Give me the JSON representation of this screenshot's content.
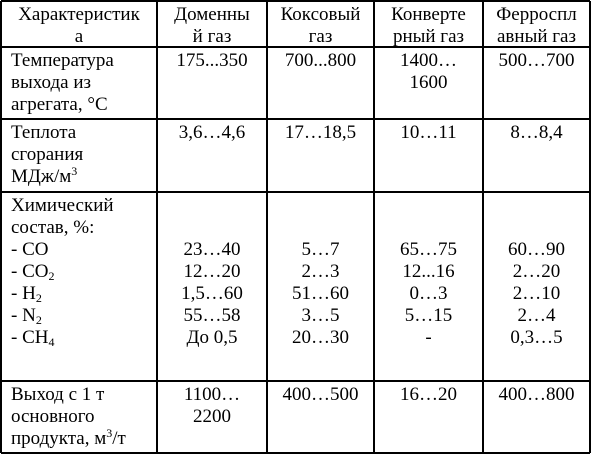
{
  "table": {
    "headers": [
      "Характеристика",
      "Доменный газ",
      "Коксовый газ",
      "Конвертерный газ",
      "Ферросплавный газ"
    ],
    "header_lines": [
      [
        "Характеристик",
        "а"
      ],
      [
        "Доменны",
        "й газ"
      ],
      [
        "Коксовый",
        "газ"
      ],
      [
        "Конверте",
        "рный газ"
      ],
      [
        "Ферроспл",
        "авный газ"
      ]
    ],
    "rows": [
      {
        "label_lines": [
          "Температура",
          "выхода из",
          "агрегата,  °С"
        ],
        "values": [
          [
            "175...350"
          ],
          [
            "700...800"
          ],
          [
            "1400…",
            "1600"
          ],
          [
            "500…700"
          ]
        ]
      },
      {
        "label_lines": [
          "Теплота",
          "сгорания",
          "МДж/м",
          "3"
        ],
        "values": [
          [
            "3,6…4,6"
          ],
          [
            "17…18,5"
          ],
          [
            "10…11"
          ],
          [
            "8…8,4"
          ]
        ]
      },
      {
        "label_lines": [
          "Химический",
          "состав, %:",
          "- CO",
          "- CO",
          "2",
          "- H",
          "2",
          "- N",
          "2",
          "- CH",
          "4"
        ],
        "values": [
          [
            "23…40",
            "12…20",
            "1,5…60",
            "55…58",
            "До 0,5"
          ],
          [
            "5…7",
            "2…3",
            "51…60",
            "3…5",
            "20…30"
          ],
          [
            "65…75",
            "12...16",
            "0…3",
            "5…15",
            "-"
          ],
          [
            "60…90",
            "2…20",
            "2…10",
            "2…4",
            "0,3…5"
          ]
        ]
      },
      {
        "label_lines": [
          "Выход с 1 т",
          "основного",
          "продукта,  м",
          "3",
          "/т"
        ],
        "values": [
          [
            "1100…",
            "2200"
          ],
          [
            "400…500"
          ],
          [
            "16…20"
          ],
          [
            "400…800"
          ]
        ]
      }
    ]
  }
}
